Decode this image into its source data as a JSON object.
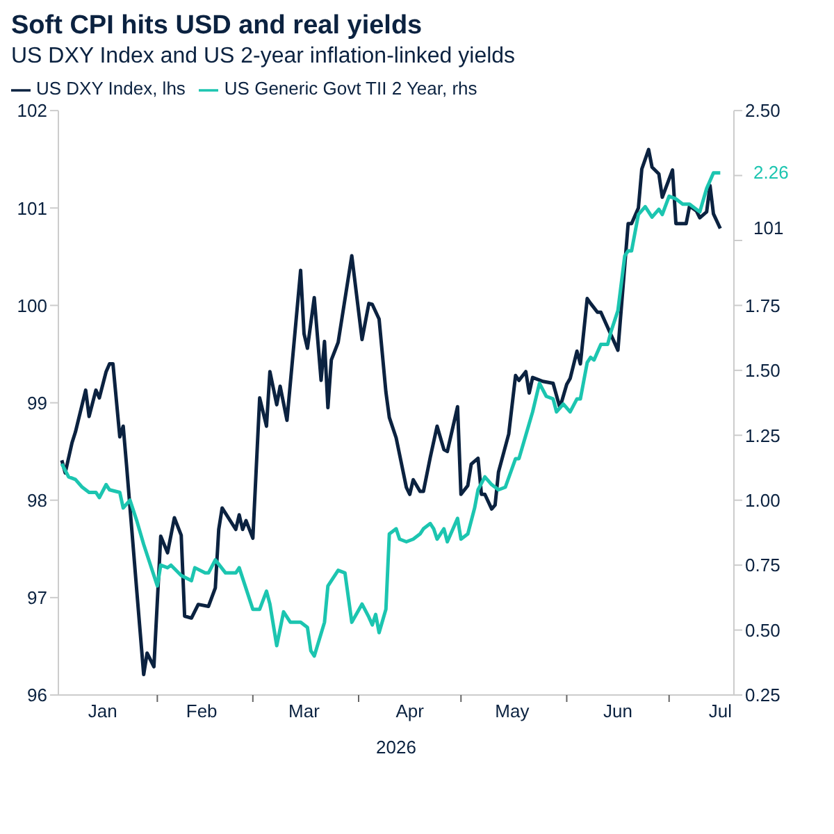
{
  "chart_data": {
    "type": "line",
    "title": "Soft CPI hits USD and real yields",
    "subtitle": "US DXY Index and US 2-year inflation-linked yields",
    "xlabel": "2026",
    "legend": "top left",
    "marker": "none",
    "line_style": "solid",
    "grid": false,
    "xlim": [
      "2026-01-03",
      "2026-07-20"
    ],
    "xticks": [
      {
        "value": "2026-01-16",
        "label": "Jan"
      },
      {
        "value": "2026-02-01",
        "label": null
      },
      {
        "value": "2026-02-14",
        "label": "Feb"
      },
      {
        "value": "2026-03-01",
        "label": null
      },
      {
        "value": "2026-03-16",
        "label": "Mar"
      },
      {
        "value": "2026-04-01",
        "label": null
      },
      {
        "value": "2026-04-16",
        "label": "Apr"
      },
      {
        "value": "2026-05-01",
        "label": null
      },
      {
        "value": "2026-05-16",
        "label": "May"
      },
      {
        "value": "2026-06-01",
        "label": null
      },
      {
        "value": "2026-06-16",
        "label": "Jun"
      },
      {
        "value": "2026-07-01",
        "label": null
      },
      {
        "value": "2026-07-16",
        "label": "Jul"
      }
    ],
    "ylim": [
      96,
      102
    ],
    "yticks": [
      96,
      97,
      98,
      99,
      100,
      101,
      102
    ],
    "y2lim": [
      0.25,
      2.5
    ],
    "y2ticks": [
      {
        "value": 0.25,
        "label": "0.25"
      },
      {
        "value": 0.5,
        "label": "0.50"
      },
      {
        "value": 0.75,
        "label": "0.75"
      },
      {
        "value": 1,
        "label": "1.00"
      },
      {
        "value": 1.25,
        "label": "1.25"
      },
      {
        "value": 1.5,
        "label": "1.50"
      },
      {
        "value": 1.75,
        "label": "1.75"
      },
      {
        "value": 2,
        "label": null
      },
      {
        "value": 2.25,
        "label": null
      },
      {
        "value": 2.5,
        "label": "2.50"
      }
    ],
    "series": [
      {
        "name": "US DXY Index, lhs",
        "color": "#0b2240",
        "x": [
          "2026-01-04",
          "2026-01-05",
          "2026-01-07",
          "2026-01-08",
          "2026-01-11",
          "2026-01-12",
          "2026-01-14",
          "2026-01-15",
          "2026-01-17",
          "2026-01-18",
          "2026-01-19",
          "2026-01-21",
          "2026-01-22",
          "2026-01-23",
          "2026-01-26",
          "2026-01-28",
          "2026-01-29",
          "2026-01-31",
          "2026-02-02",
          "2026-02-04",
          "2026-02-06",
          "2026-02-08",
          "2026-02-09",
          "2026-02-11",
          "2026-02-13",
          "2026-02-16",
          "2026-02-18",
          "2026-02-19",
          "2026-02-20",
          "2026-02-24",
          "2026-02-25",
          "2026-02-26",
          "2026-02-27",
          "2026-03-01",
          "2026-03-03",
          "2026-03-05",
          "2026-03-06",
          "2026-03-08",
          "2026-03-09",
          "2026-03-11",
          "2026-03-15",
          "2026-03-16",
          "2026-03-17",
          "2026-03-19",
          "2026-03-21",
          "2026-03-22",
          "2026-03-23",
          "2026-03-24",
          "2026-03-26",
          "2026-03-30",
          "2026-04-02",
          "2026-04-04",
          "2026-04-05",
          "2026-04-07",
          "2026-04-09",
          "2026-04-10",
          "2026-04-12",
          "2026-04-15",
          "2026-04-16",
          "2026-04-17",
          "2026-04-19",
          "2026-04-20",
          "2026-04-22",
          "2026-04-24",
          "2026-04-26",
          "2026-04-27",
          "2026-04-30",
          "2026-05-01",
          "2026-05-03",
          "2026-05-04",
          "2026-05-06",
          "2026-05-07",
          "2026-05-08",
          "2026-05-10",
          "2026-05-11",
          "2026-05-12",
          "2026-05-15",
          "2026-05-17",
          "2026-05-18",
          "2026-05-20",
          "2026-05-21",
          "2026-05-22",
          "2026-05-25",
          "2026-05-28",
          "2026-05-30",
          "2026-06-01",
          "2026-06-02",
          "2026-06-04",
          "2026-06-05",
          "2026-06-07",
          "2026-06-08",
          "2026-06-10",
          "2026-06-11",
          "2026-06-16",
          "2026-06-19",
          "2026-06-20",
          "2026-06-22",
          "2026-06-23",
          "2026-06-25",
          "2026-06-26",
          "2026-06-28",
          "2026-06-29",
          "2026-07-02",
          "2026-07-03",
          "2026-07-06",
          "2026-07-07",
          "2026-07-09",
          "2026-07-10",
          "2026-07-12",
          "2026-07-13",
          "2026-07-14",
          "2026-07-16"
        ],
        "values": [
          98.41,
          98.28,
          98.59,
          98.7,
          99.13,
          98.86,
          99.13,
          99.05,
          99.32,
          99.4,
          99.4,
          98.65,
          98.76,
          98.35,
          97.06,
          96.21,
          96.43,
          96.29,
          97.63,
          97.46,
          97.82,
          97.64,
          96.81,
          96.79,
          96.93,
          96.91,
          97.1,
          97.7,
          97.92,
          97.7,
          97.85,
          97.7,
          97.79,
          97.61,
          99.05,
          98.76,
          99.32,
          98.98,
          99.17,
          98.82,
          100.36,
          99.71,
          99.56,
          100.08,
          99.23,
          99.63,
          98.95,
          99.44,
          99.62,
          100.51,
          99.65,
          100.02,
          100.01,
          99.86,
          99.11,
          98.85,
          98.64,
          98.13,
          98.06,
          98.21,
          98.09,
          98.09,
          98.44,
          98.76,
          98.52,
          98.5,
          98.96,
          98.06,
          98.15,
          98.37,
          98.43,
          98.06,
          98.06,
          97.91,
          97.95,
          98.29,
          98.68,
          99.28,
          99.23,
          99.32,
          99.1,
          99.26,
          99.22,
          99.2,
          98.95,
          99.19,
          99.25,
          99.53,
          99.4,
          100.07,
          100.02,
          99.93,
          99.93,
          99.54,
          100.84,
          100.84,
          101.0,
          101.4,
          101.6,
          101.42,
          101.35,
          101.11,
          101.39,
          100.84,
          100.84,
          101.02,
          100.97,
          100.9,
          100.96,
          101.23,
          100.94,
          100.79
        ],
        "value_labels": [
          null,
          null,
          null,
          null,
          null,
          null,
          null,
          null,
          null,
          null,
          null,
          null,
          null,
          null,
          null,
          null,
          null,
          null,
          null,
          null,
          null,
          null,
          null,
          null,
          null,
          null,
          null,
          null,
          null,
          null,
          null,
          null,
          null,
          null,
          null,
          null,
          null,
          null,
          null,
          null,
          null,
          null,
          null,
          null,
          null,
          null,
          null,
          null,
          null,
          null,
          null,
          null,
          null,
          null,
          null,
          null,
          null,
          null,
          null,
          null,
          null,
          null,
          null,
          null,
          null,
          null,
          null,
          null,
          null,
          null,
          null,
          null,
          null,
          null,
          null,
          null,
          null,
          null,
          null,
          null,
          null,
          null,
          null,
          null,
          null,
          null,
          null,
          null,
          null,
          null,
          null,
          null,
          null,
          null,
          null,
          null,
          null,
          null,
          null,
          null,
          null,
          null,
          null,
          null,
          null,
          null,
          null,
          null,
          null,
          null,
          null,
          "101"
        ]
      },
      {
        "name": "US Generic Govt TII 2 Year, rhs",
        "color": "#1cc5b0",
        "axis": "y2",
        "x": [
          "2026-01-04",
          "2026-01-06",
          "2026-01-08",
          "2026-01-10",
          "2026-01-12",
          "2026-01-14",
          "2026-01-15",
          "2026-01-17",
          "2026-01-18",
          "2026-01-21",
          "2026-01-22",
          "2026-01-24",
          "2026-01-26",
          "2026-01-28",
          "2026-02-01",
          "2026-02-02",
          "2026-02-04",
          "2026-02-05",
          "2026-02-08",
          "2026-02-11",
          "2026-02-12",
          "2026-02-15",
          "2026-02-16",
          "2026-02-18",
          "2026-02-21",
          "2026-02-24",
          "2026-02-25",
          "2026-03-01",
          "2026-03-03",
          "2026-03-05",
          "2026-03-06",
          "2026-03-08",
          "2026-03-10",
          "2026-03-12",
          "2026-03-15",
          "2026-03-17",
          "2026-03-18",
          "2026-03-19",
          "2026-03-22",
          "2026-03-23",
          "2026-03-26",
          "2026-03-28",
          "2026-03-30",
          "2026-04-02",
          "2026-04-04",
          "2026-04-05",
          "2026-04-06",
          "2026-04-07",
          "2026-04-09",
          "2026-04-10",
          "2026-04-12",
          "2026-04-13",
          "2026-04-15",
          "2026-04-17",
          "2026-04-19",
          "2026-04-20",
          "2026-04-22",
          "2026-04-23",
          "2026-04-24",
          "2026-04-26",
          "2026-04-27",
          "2026-04-30",
          "2026-05-01",
          "2026-05-03",
          "2026-05-05",
          "2026-05-06",
          "2026-05-08",
          "2026-05-10",
          "2026-05-12",
          "2026-05-14",
          "2026-05-17",
          "2026-05-18",
          "2026-05-20",
          "2026-05-22",
          "2026-05-24",
          "2026-05-26",
          "2026-05-28",
          "2026-05-29",
          "2026-05-31",
          "2026-06-02",
          "2026-06-04",
          "2026-06-05",
          "2026-06-07",
          "2026-06-08",
          "2026-06-09",
          "2026-06-11",
          "2026-06-13",
          "2026-06-14",
          "2026-06-16",
          "2026-06-18",
          "2026-06-19",
          "2026-06-20",
          "2026-06-22",
          "2026-06-24",
          "2026-06-26",
          "2026-06-28",
          "2026-06-29",
          "2026-07-01",
          "2026-07-03",
          "2026-07-05",
          "2026-07-07",
          "2026-07-10",
          "2026-07-12",
          "2026-07-14",
          "2026-07-16"
        ],
        "values": [
          1.14,
          1.09,
          1.08,
          1.05,
          1.03,
          1.03,
          1.01,
          1.06,
          1.04,
          1.03,
          0.97,
          1.0,
          0.92,
          0.83,
          0.67,
          0.75,
          0.74,
          0.75,
          0.71,
          0.69,
          0.74,
          0.72,
          0.72,
          0.77,
          0.72,
          0.72,
          0.74,
          0.58,
          0.58,
          0.65,
          0.6,
          0.44,
          0.57,
          0.53,
          0.53,
          0.51,
          0.42,
          0.4,
          0.53,
          0.67,
          0.73,
          0.72,
          0.53,
          0.6,
          0.55,
          0.52,
          0.56,
          0.49,
          0.58,
          0.87,
          0.89,
          0.85,
          0.84,
          0.85,
          0.87,
          0.89,
          0.91,
          0.89,
          0.85,
          0.89,
          0.84,
          0.93,
          0.85,
          0.87,
          0.97,
          1.04,
          1.09,
          1.06,
          1.04,
          1.05,
          1.16,
          1.16,
          1.25,
          1.34,
          1.45,
          1.4,
          1.39,
          1.34,
          1.37,
          1.34,
          1.39,
          1.39,
          1.53,
          1.55,
          1.54,
          1.6,
          1.6,
          1.65,
          1.73,
          1.94,
          1.96,
          1.96,
          2.1,
          2.13,
          2.09,
          2.12,
          2.1,
          2.17,
          2.16,
          2.14,
          2.14,
          2.11,
          2.2,
          2.26,
          2.26
        ],
        "value_labels": [
          null,
          null,
          null,
          null,
          null,
          null,
          null,
          null,
          null,
          null,
          null,
          null,
          null,
          null,
          null,
          null,
          null,
          null,
          null,
          null,
          null,
          null,
          null,
          null,
          null,
          null,
          null,
          null,
          null,
          null,
          null,
          null,
          null,
          null,
          null,
          null,
          null,
          null,
          null,
          null,
          null,
          null,
          null,
          null,
          null,
          null,
          null,
          null,
          null,
          null,
          null,
          null,
          null,
          null,
          null,
          null,
          null,
          null,
          null,
          null,
          null,
          null,
          null,
          null,
          null,
          null,
          null,
          null,
          null,
          null,
          null,
          null,
          null,
          null,
          null,
          null,
          null,
          null,
          null,
          null,
          null,
          null,
          null,
          null,
          null,
          null,
          null,
          null,
          null,
          null,
          null,
          null,
          null,
          null,
          null,
          null,
          null,
          null,
          null,
          null,
          null,
          null,
          null,
          null,
          "2.26"
        ]
      }
    ]
  }
}
